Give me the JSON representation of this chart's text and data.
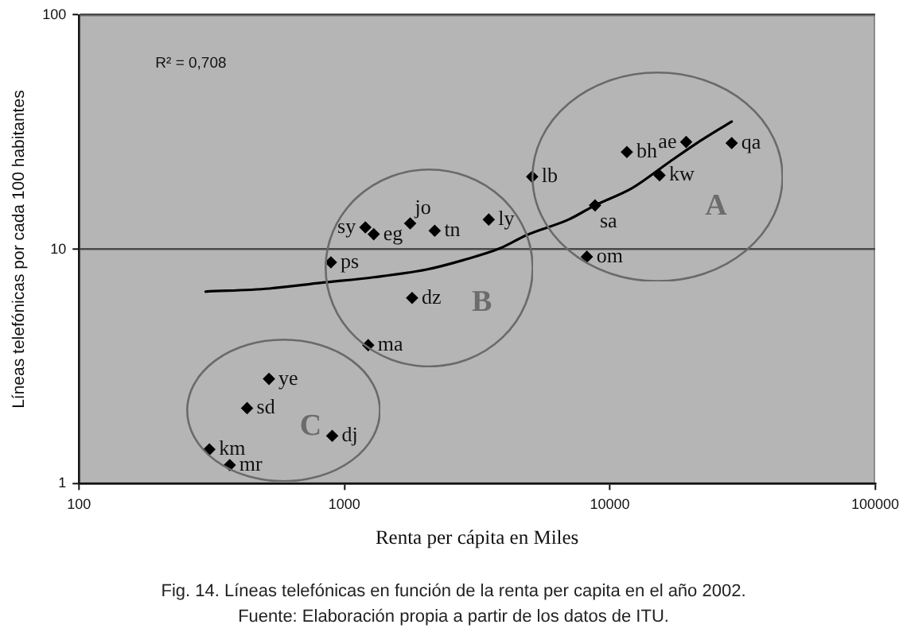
{
  "chart_data": {
    "type": "scatter",
    "title": "Fig. 14. Líneas telefónicas en función de la renta per capita en el año 2002.",
    "subtitle": "Fuente: Elaboración propia a partir de los datos de ITU.",
    "xlabel": "Renta per cápita en Miles",
    "ylabel": "Líneas telefónicas por cada 100 habitantes",
    "annotations": [
      "R² = 0,708",
      "A",
      "B",
      "C"
    ],
    "log": "xy",
    "xlim": [
      100,
      100000
    ],
    "ylim": [
      1,
      100
    ],
    "xticks": [
      100,
      1000,
      10000,
      100000
    ],
    "yticks": [
      1,
      10,
      100
    ],
    "grid": "y",
    "marker": "diamond",
    "series": [
      {
        "type": "line",
        "marker": "none",
        "color": "#000000",
        "x": [
          300,
          520,
          820,
          1290,
          2040,
          2810,
          3860,
          4860,
          7000,
          8790,
          12100,
          16700,
          21000,
          28800
        ],
        "values": [
          6.6,
          6.8,
          7.2,
          7.6,
          8.2,
          9.0,
          10.1,
          11.5,
          13.4,
          15.4,
          18.2,
          23.5,
          28.1,
          35.1
        ]
      },
      {
        "name": "sy",
        "color": "#000000",
        "x": [
          1200
        ],
        "values": [
          12.4
        ]
      },
      {
        "name": "eg",
        "color": "#000000",
        "x": [
          1290
        ],
        "values": [
          11.6
        ]
      },
      {
        "name": "jo",
        "color": "#000000",
        "x": [
          1770
        ],
        "values": [
          12.9
        ]
      },
      {
        "name": "tn",
        "color": "#000000",
        "x": [
          2190
        ],
        "values": [
          12.0
        ]
      },
      {
        "name": "ps",
        "color": "#000000",
        "x": [
          890
        ],
        "values": [
          8.8
        ]
      },
      {
        "name": "dz",
        "color": "#000000",
        "x": [
          1800
        ],
        "values": [
          6.2
        ]
      },
      {
        "name": "ma",
        "color": "#000000",
        "x": [
          1230
        ],
        "values": [
          3.9
        ]
      },
      {
        "name": "ye",
        "color": "#000000",
        "x": [
          520
        ],
        "values": [
          2.8
        ]
      },
      {
        "name": "sd",
        "color": "#000000",
        "x": [
          430
        ],
        "values": [
          2.1
        ]
      },
      {
        "name": "dj",
        "color": "#000000",
        "x": [
          900
        ],
        "values": [
          1.6
        ]
      },
      {
        "name": "km",
        "color": "#000000",
        "x": [
          310
        ],
        "values": [
          1.4
        ]
      },
      {
        "name": "mr",
        "color": "#000000",
        "x": [
          370
        ],
        "values": [
          1.2
        ]
      },
      {
        "name": "ly",
        "color": "#000000",
        "x": [
          3500
        ],
        "values": [
          13.4
        ]
      },
      {
        "name": "lb",
        "color": "#000000",
        "x": [
          5100
        ],
        "values": [
          20.4
        ]
      },
      {
        "name": "sa",
        "color": "#000000",
        "x": [
          8800
        ],
        "values": [
          15.4
        ]
      },
      {
        "name": "om",
        "color": "#000000",
        "x": [
          8200
        ],
        "values": [
          9.3
        ]
      },
      {
        "name": "bh",
        "color": "#000000",
        "x": [
          11600
        ],
        "values": [
          26
        ]
      },
      {
        "name": "kw",
        "color": "#000000",
        "x": [
          15400
        ],
        "values": [
          20.7
        ]
      },
      {
        "name": "ae",
        "color": "#000000",
        "x": [
          19400
        ],
        "values": [
          28.7
        ]
      },
      {
        "name": "qa",
        "color": "#000000",
        "x": [
          28800
        ],
        "values": [
          28.4
        ]
      }
    ]
  }
}
